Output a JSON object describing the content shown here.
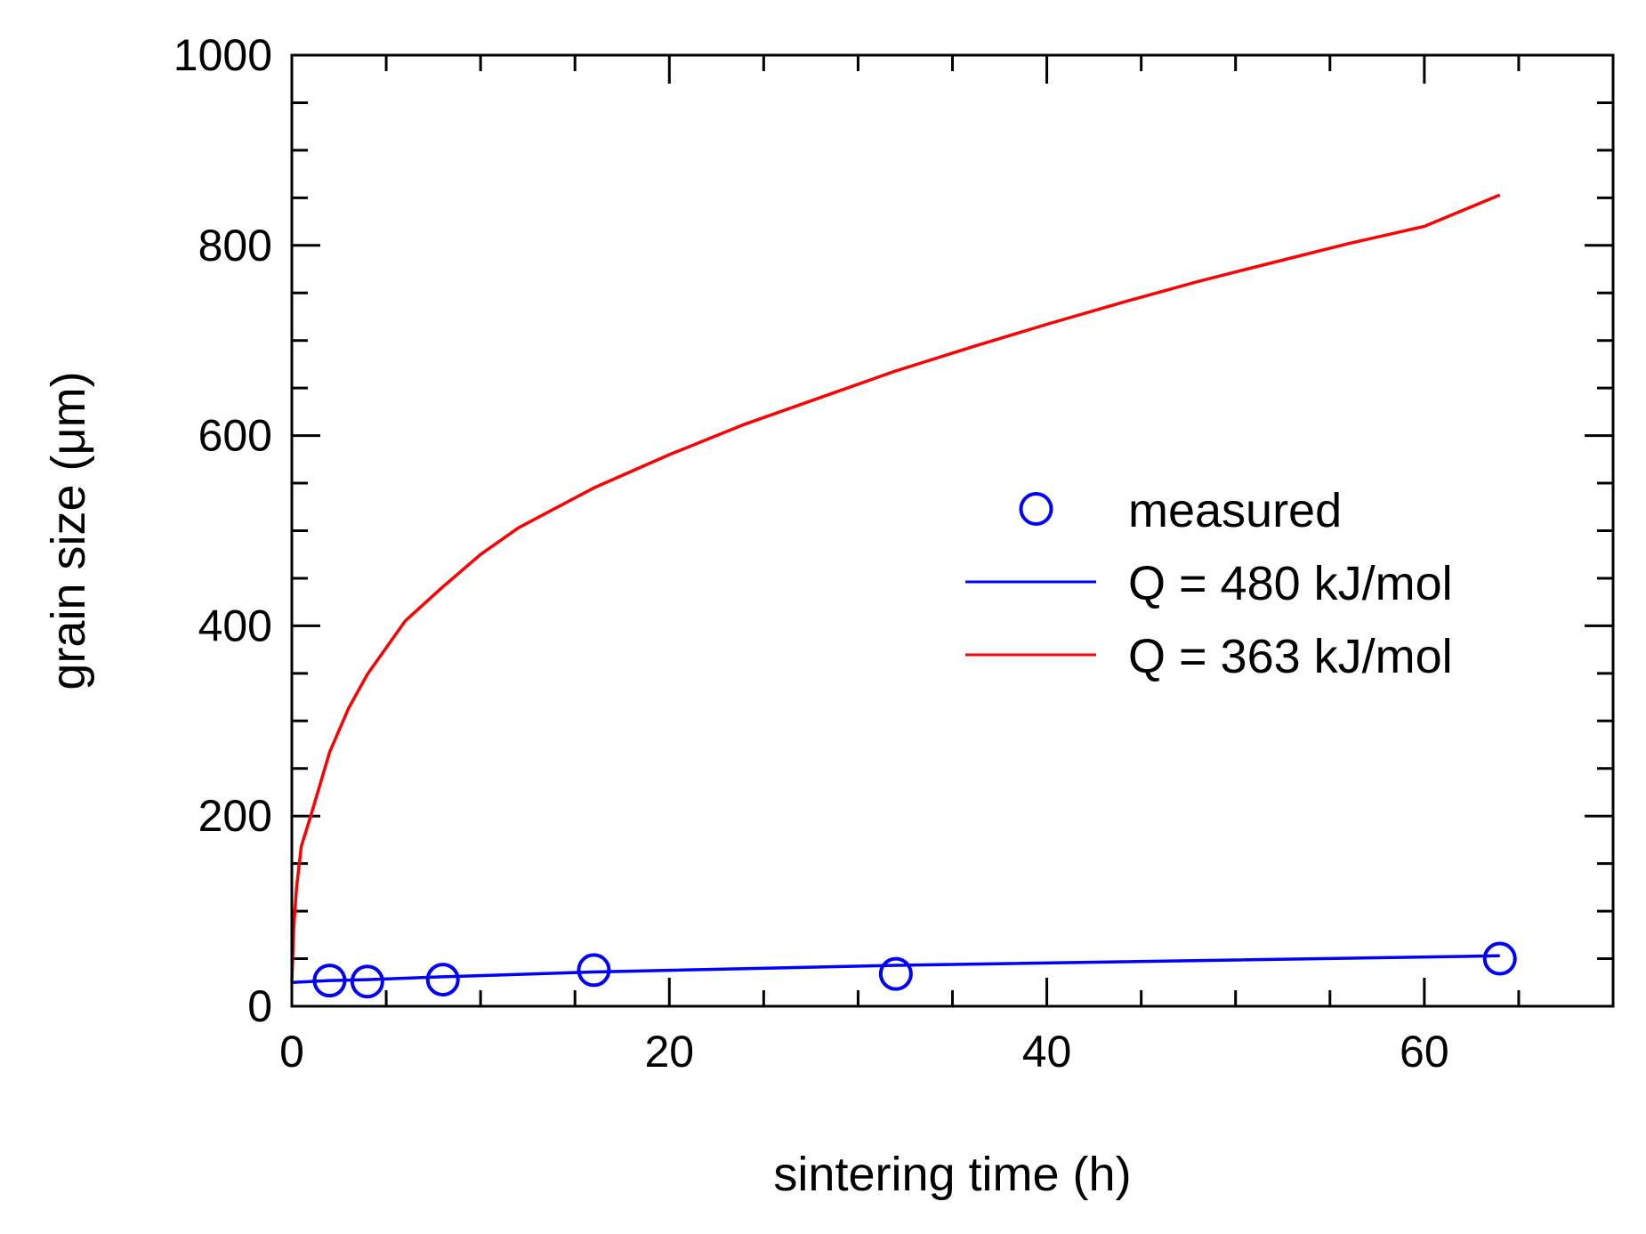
{
  "chart_data": {
    "type": "scatter",
    "xlabel": "sintering time (h)",
    "ylabel": "grain size (μm)",
    "xlim": [
      0,
      70
    ],
    "ylim": [
      0,
      1000
    ],
    "xticks": [
      0,
      20,
      40,
      60
    ],
    "yticks": [
      0,
      200,
      400,
      600,
      800,
      1000
    ],
    "grid": false,
    "legend_position": "right-center",
    "colors": {
      "measured": "#0000ff",
      "fit_480": "#0000ff",
      "fit_363": "#ff0000"
    },
    "series": [
      {
        "name": "measured",
        "kind": "scatter",
        "marker": "open-circle",
        "x": [
          2,
          4,
          8,
          16,
          32,
          64
        ],
        "y": [
          27,
          26,
          28,
          38,
          34,
          50
        ]
      },
      {
        "name": "Q = 480 kJ/mol",
        "kind": "line",
        "x": [
          0,
          2,
          4,
          8,
          16,
          32,
          64
        ],
        "y": [
          25,
          27,
          28,
          31,
          36,
          43,
          53
        ]
      },
      {
        "name": "Q = 363 kJ/mol",
        "kind": "line",
        "x": [
          0,
          0.1,
          0.25,
          0.5,
          1,
          2,
          3,
          4,
          6,
          8,
          10,
          12,
          16,
          20,
          24,
          28,
          32,
          36,
          40,
          44,
          48,
          52,
          56,
          60,
          64
        ],
        "y": [
          25,
          82,
          125,
          168,
          200,
          267,
          313,
          349,
          405,
          441,
          475,
          503,
          545,
          580,
          612,
          640,
          668,
          693,
          717,
          740,
          762,
          782,
          802,
          820,
          853
        ]
      }
    ],
    "legend": [
      "measured",
      "Q = 480 kJ/mol",
      "Q = 363 kJ/mol"
    ]
  }
}
